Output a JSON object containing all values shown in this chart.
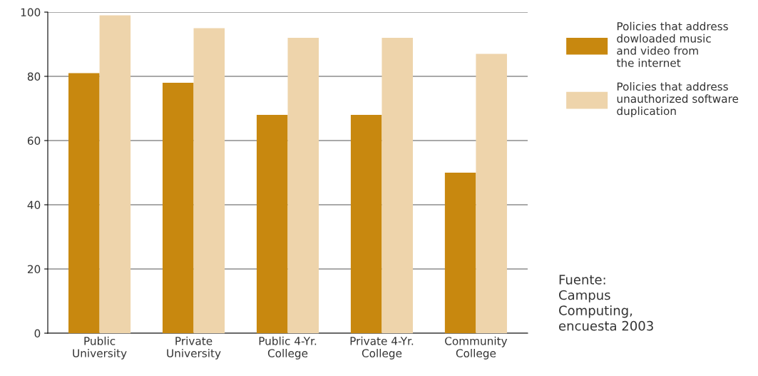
{
  "chart_data": {
    "type": "bar",
    "categories": [
      "Public\nUniversity",
      "Private\nUniversity",
      "Public 4-Yr.\nCollege",
      "Private 4-Yr.\nCollege",
      "Community\nCollege"
    ],
    "series": [
      {
        "name": "Policies that address\ndowloaded music\nand video from\nthe internet",
        "color": "#c8880f",
        "values": [
          81,
          78,
          68,
          68,
          50
        ]
      },
      {
        "name": "Policies that address\nunauthorized software\nduplication",
        "color": "#eed4ab",
        "values": [
          99,
          95,
          92,
          92,
          87
        ]
      }
    ],
    "ylim": [
      0,
      100
    ],
    "yticks": [
      0,
      20,
      40,
      60,
      80,
      100
    ],
    "grid": "y",
    "legend": "top right",
    "annotations": [
      "Fuente:\nCampus\nComputing,\nencuesta 2003"
    ]
  }
}
